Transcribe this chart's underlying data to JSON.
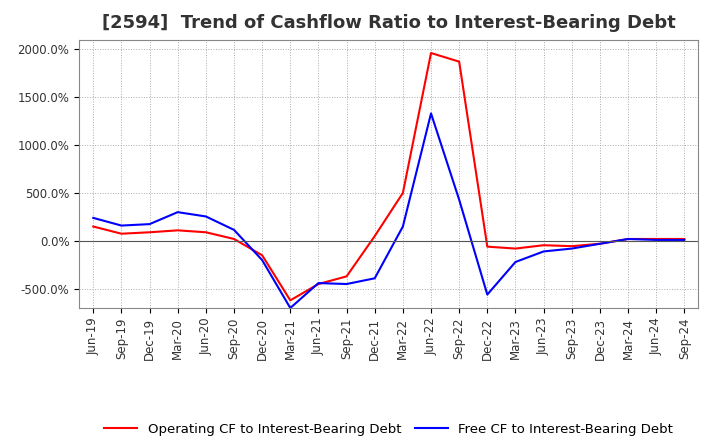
{
  "title": "[2594]  Trend of Cashflow Ratio to Interest-Bearing Debt",
  "background_color": "#ffffff",
  "grid_color": "#aaaaaa",
  "ylim": [
    -700,
    2100
  ],
  "yticks": [
    -500,
    0,
    500,
    1000,
    1500,
    2000
  ],
  "ytick_labels": [
    "-500.0%",
    "0.0%",
    "500.0%",
    "1000.0%",
    "1500.0%",
    "2000.0%"
  ],
  "x_labels": [
    "Jun-19",
    "Sep-19",
    "Dec-19",
    "Mar-20",
    "Jun-20",
    "Sep-20",
    "Dec-20",
    "Mar-21",
    "Jun-21",
    "Sep-21",
    "Dec-21",
    "Mar-22",
    "Jun-22",
    "Sep-22",
    "Dec-22",
    "Mar-23",
    "Jun-23",
    "Sep-23",
    "Dec-23",
    "Mar-24",
    "Jun-24",
    "Sep-24"
  ],
  "operating_cf": [
    150,
    75,
    90,
    110,
    90,
    20,
    -150,
    -620,
    -450,
    -370,
    50,
    500,
    1960,
    1870,
    -60,
    -80,
    -45,
    -55,
    -30,
    20,
    20,
    20
  ],
  "free_cf": [
    240,
    160,
    175,
    300,
    255,
    115,
    -200,
    -700,
    -440,
    -450,
    -390,
    150,
    1330,
    430,
    -560,
    -220,
    -110,
    -80,
    -30,
    20,
    10,
    10
  ],
  "operating_color": "#ff0000",
  "free_color": "#0000ff",
  "legend_op": "Operating CF to Interest-Bearing Debt",
  "legend_free": "Free CF to Interest-Bearing Debt",
  "title_fontsize": 13,
  "tick_fontsize": 8.5,
  "legend_fontsize": 9.5,
  "linewidth": 1.5
}
